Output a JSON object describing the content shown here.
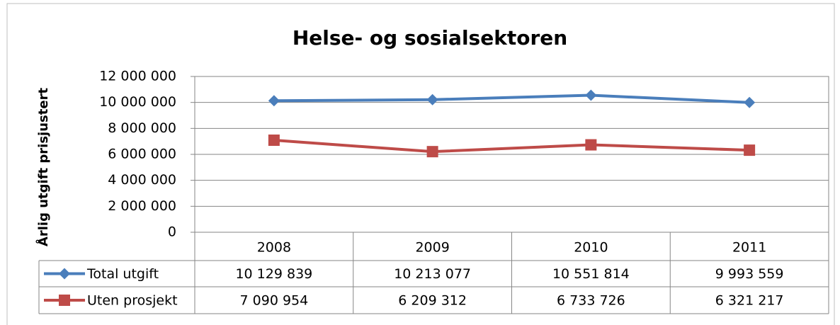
{
  "chart_data": {
    "type": "line",
    "title": "Helse- og sosialsektoren",
    "y_label": "Årlig utgift prisjustert",
    "categories": [
      "2008",
      "2009",
      "2010",
      "2011"
    ],
    "series": [
      {
        "name": "Total utgift",
        "color": "#4a7ebb",
        "marker": "diamond",
        "values": [
          10129839,
          10213077,
          10551814,
          9993559
        ],
        "value_labels": [
          "10 129 839",
          "10 213 077",
          "10 551 814",
          "9 993 559"
        ]
      },
      {
        "name": "Uten prosjekt",
        "color": "#be4b48",
        "marker": "square",
        "values": [
          7090954,
          6209312,
          6733726,
          6321217
        ],
        "value_labels": [
          "7 090 954",
          "6 209 312",
          "6 733 726",
          "6 321 217"
        ]
      }
    ],
    "ylim": [
      0,
      12000000
    ],
    "yticks": [
      {
        "value": 0,
        "label": "0"
      },
      {
        "value": 2000000,
        "label": "2 000 000"
      },
      {
        "value": 4000000,
        "label": "4 000 000"
      },
      {
        "value": 6000000,
        "label": "6 000 000"
      },
      {
        "value": 8000000,
        "label": "8 000 000"
      },
      {
        "value": 10000000,
        "label": "10 000 000"
      },
      {
        "value": 12000000,
        "label": "12 000 000"
      }
    ],
    "grid": true,
    "data_table": true
  }
}
